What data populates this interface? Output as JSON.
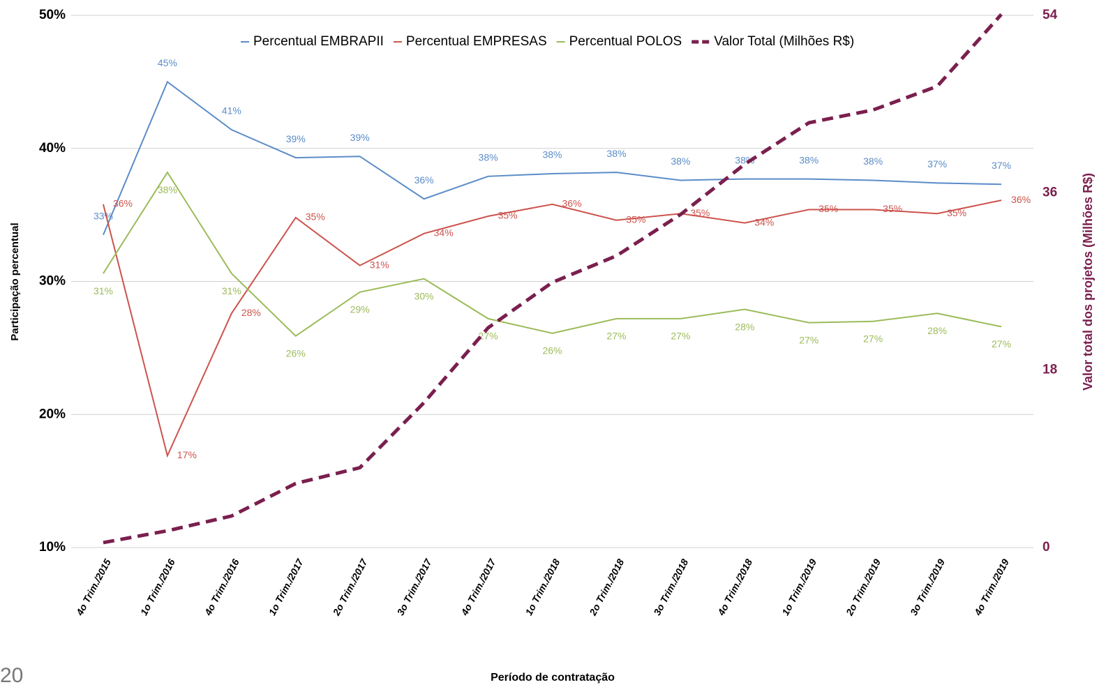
{
  "page_number": "20",
  "chart_data": {
    "type": "line",
    "xlabel": "Período de contratação",
    "ylabel": "Participação percentual",
    "y2label": "Valor total dos projetos (Milhões R$)",
    "categories": [
      "4o Trim./2015",
      "1o Trim./2016",
      "4o Trim./2016",
      "1o Trim./2017",
      "2o Trim./2017",
      "3o Trim./2017",
      "4o Trim./2017",
      "1o Trim./2018",
      "2o Trim./2018",
      "3o Trim./2018",
      "4o Trim./2018",
      "1o Trim./2019",
      "2o Trim./2019",
      "3o Trim./2019",
      "4o Trim./2019"
    ],
    "ylim": [
      10,
      50
    ],
    "yticks": [
      {
        "value": 10,
        "label": "10%"
      },
      {
        "value": 20,
        "label": "20%"
      },
      {
        "value": 30,
        "label": "30%"
      },
      {
        "value": 40,
        "label": "40%"
      },
      {
        "value": 50,
        "label": "50%"
      }
    ],
    "y2lim": [
      0,
      54
    ],
    "y2ticks": [
      0,
      18,
      36,
      54
    ],
    "grid": true,
    "legend": "top",
    "series": [
      {
        "name": "Percentual EMBRAPII",
        "color": "#5b8cc8",
        "label_pos": "above",
        "values": [
          33.5,
          45.0,
          41.4,
          39.3,
          39.4,
          36.2,
          37.9,
          38.1,
          38.2,
          37.6,
          37.7,
          37.7,
          37.6,
          37.4,
          37.3
        ],
        "value_labels": [
          "33%",
          "45%",
          "41%",
          "39%",
          "39%",
          "36%",
          "38%",
          "38%",
          "38%",
          "38%",
          "38%",
          "38%",
          "38%",
          "37%",
          "37%"
        ]
      },
      {
        "name": "Percentual EMPRESAS",
        "color": "#cc534d",
        "label_pos": "right",
        "values": [
          35.8,
          16.9,
          27.6,
          34.8,
          31.2,
          33.6,
          34.9,
          35.8,
          34.6,
          35.1,
          34.4,
          35.4,
          35.4,
          35.1,
          36.1
        ],
        "value_labels": [
          "36%",
          "17%",
          "28%",
          "35%",
          "31%",
          "34%",
          "35%",
          "36%",
          "35%",
          "35%",
          "34%",
          "35%",
          "35%",
          "35%",
          "36%"
        ]
      },
      {
        "name": "Percentual POLOS",
        "color": "#9bbb59",
        "label_pos": "below",
        "values": [
          30.6,
          38.2,
          30.6,
          25.9,
          29.2,
          30.2,
          27.2,
          26.1,
          27.2,
          27.2,
          27.9,
          26.9,
          27.0,
          27.6,
          26.6
        ],
        "value_labels": [
          "31%",
          "38%",
          "31%",
          "26%",
          "29%",
          "30%",
          "27%",
          "26%",
          "27%",
          "27%",
          "28%",
          "27%",
          "27%",
          "28%",
          "27%"
        ]
      },
      {
        "name": "Valor Total (Milhões R$)",
        "color": "#7a1f4e",
        "axis": "y2",
        "dashed": true,
        "values": [
          0.5,
          1.7,
          3.2,
          6.5,
          8.1,
          14.7,
          22.3,
          26.9,
          29.6,
          33.8,
          38.9,
          43.1,
          44.4,
          46.8,
          54.1
        ]
      }
    ]
  }
}
